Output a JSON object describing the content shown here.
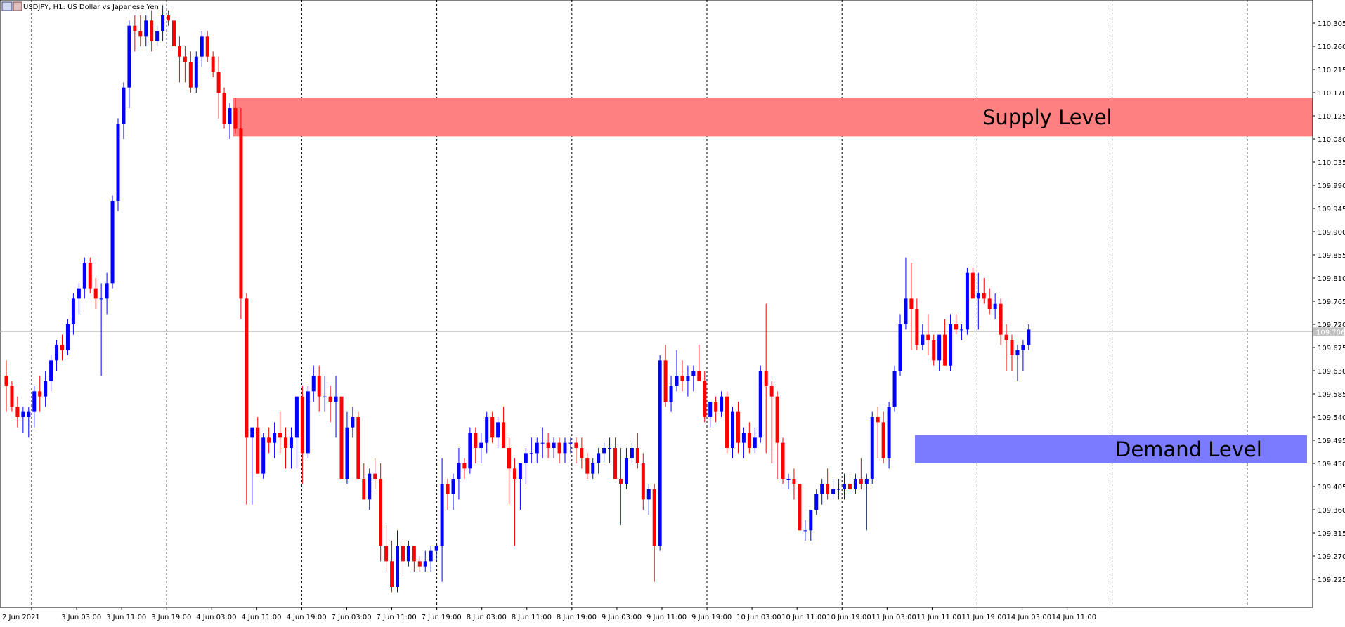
{
  "window": {
    "title": "USDJPY, H1:  US Dollar vs Japanese Yen",
    "icon": "chart-window-icon"
  },
  "colors": {
    "bull": "#0000ff",
    "bear": "#ff0000",
    "supply": "#ff8080",
    "demand": "#7b7bff",
    "grid": "#000000",
    "current_price_line": "#c0c0c0"
  },
  "chart_data": {
    "type": "candlestick",
    "symbol": "USDJPY",
    "timeframe": "H1",
    "y_range": [
      109.18,
      110.35
    ],
    "y_ticks": [
      "110.305",
      "110.260",
      "110.215",
      "110.170",
      "110.125",
      "110.080",
      "110.035",
      "109.990",
      "109.945",
      "109.900",
      "109.855",
      "109.810",
      "109.765",
      "109.720",
      "109.675",
      "109.630",
      "109.585",
      "109.540",
      "109.495",
      "109.450",
      "109.405",
      "109.360",
      "109.315",
      "109.270",
      "109.225"
    ],
    "x_ticks": [
      "2 Jun 2021",
      "3 Jun 03:00",
      "3 Jun 11:00",
      "3 Jun 19:00",
      "4 Jun 03:00",
      "4 Jun 11:00",
      "4 Jun 19:00",
      "7 Jun 03:00",
      "7 Jun 11:00",
      "7 Jun 19:00",
      "8 Jun 03:00",
      "8 Jun 11:00",
      "8 Jun 19:00",
      "9 Jun 03:00",
      "9 Jun 11:00",
      "9 Jun 19:00",
      "10 Jun 03:00",
      "10 Jun 11:00",
      "10 Jun 19:00",
      "11 Jun 03:00",
      "11 Jun 11:00",
      "11 Jun 19:00",
      "14 Jun 03:00",
      "14 Jun 11:00"
    ],
    "current_price": 109.706,
    "current_price_label": "109.706",
    "zones": [
      {
        "name": "Supply Level",
        "low": 110.085,
        "high": 110.16
      },
      {
        "name": "Demand Level",
        "low": 109.45,
        "high": 109.505
      }
    ],
    "ohlc": [
      [
        109.62,
        109.65,
        109.55,
        109.6
      ],
      [
        109.6,
        109.61,
        109.55,
        109.56
      ],
      [
        109.56,
        109.58,
        109.52,
        109.54
      ],
      [
        109.54,
        109.56,
        109.51,
        109.55
      ],
      [
        109.54,
        109.56,
        109.5,
        109.55
      ],
      [
        109.55,
        109.6,
        109.52,
        109.59
      ],
      [
        109.59,
        109.62,
        109.55,
        109.58
      ],
      [
        109.58,
        109.63,
        109.56,
        109.61
      ],
      [
        109.61,
        109.66,
        109.59,
        109.65
      ],
      [
        109.65,
        109.69,
        109.63,
        109.68
      ],
      [
        109.68,
        109.7,
        109.65,
        109.67
      ],
      [
        109.67,
        109.73,
        109.66,
        109.72
      ],
      [
        109.72,
        109.78,
        109.7,
        109.77
      ],
      [
        109.77,
        109.8,
        109.74,
        109.79
      ],
      [
        109.79,
        109.85,
        109.77,
        109.84
      ],
      [
        109.84,
        109.85,
        109.78,
        109.79
      ],
      [
        109.79,
        109.81,
        109.75,
        109.77
      ],
      [
        109.77,
        109.8,
        109.62,
        109.77
      ],
      [
        109.77,
        109.82,
        109.74,
        109.8
      ],
      [
        109.8,
        109.97,
        109.79,
        109.96
      ],
      [
        109.96,
        110.12,
        109.94,
        110.11
      ],
      [
        110.11,
        110.19,
        110.08,
        110.18
      ],
      [
        110.18,
        110.31,
        110.14,
        110.3
      ],
      [
        110.3,
        110.32,
        110.25,
        110.29
      ],
      [
        110.29,
        110.32,
        110.26,
        110.28
      ],
      [
        110.28,
        110.32,
        110.26,
        110.31
      ],
      [
        110.31,
        110.33,
        110.25,
        110.27
      ],
      [
        110.27,
        110.3,
        110.26,
        110.29
      ],
      [
        110.29,
        110.34,
        110.27,
        110.32
      ],
      [
        110.32,
        110.33,
        110.3,
        110.31
      ],
      [
        110.31,
        110.33,
        110.26,
        110.26
      ],
      [
        110.26,
        110.28,
        110.19,
        110.24
      ],
      [
        110.24,
        110.26,
        110.19,
        110.23
      ],
      [
        110.23,
        110.25,
        110.17,
        110.18
      ],
      [
        110.18,
        110.25,
        110.17,
        110.24
      ],
      [
        110.24,
        110.29,
        110.22,
        110.28
      ],
      [
        110.28,
        110.29,
        110.23,
        110.24
      ],
      [
        110.24,
        110.25,
        110.2,
        110.21
      ],
      [
        110.21,
        110.24,
        110.12,
        110.17
      ],
      [
        110.17,
        110.18,
        110.1,
        110.11
      ],
      [
        110.11,
        110.15,
        110.08,
        110.14
      ],
      [
        110.14,
        110.16,
        110.09,
        110.1
      ],
      [
        110.1,
        110.14,
        109.73,
        109.77
      ],
      [
        109.77,
        109.78,
        109.37,
        109.5
      ],
      [
        109.5,
        109.52,
        109.37,
        109.52
      ],
      [
        109.52,
        109.54,
        109.43,
        109.43
      ],
      [
        109.43,
        109.51,
        109.42,
        109.5
      ],
      [
        109.5,
        109.52,
        109.47,
        109.49
      ],
      [
        109.49,
        109.53,
        109.46,
        109.51
      ],
      [
        109.51,
        109.55,
        109.47,
        109.5
      ],
      [
        109.5,
        109.52,
        109.44,
        109.48
      ],
      [
        109.48,
        109.52,
        109.44,
        109.5
      ],
      [
        109.5,
        109.58,
        109.44,
        109.58
      ],
      [
        109.58,
        109.6,
        109.41,
        109.47
      ],
      [
        109.47,
        109.6,
        109.46,
        109.59
      ],
      [
        109.59,
        109.64,
        109.57,
        109.62
      ],
      [
        109.62,
        109.64,
        109.55,
        109.58
      ],
      [
        109.58,
        109.62,
        109.55,
        109.58
      ],
      [
        109.58,
        109.6,
        109.53,
        109.57
      ],
      [
        109.57,
        109.62,
        109.5,
        109.58
      ],
      [
        109.58,
        109.58,
        109.42,
        109.42
      ],
      [
        109.42,
        109.55,
        109.41,
        109.52
      ],
      [
        109.52,
        109.56,
        109.5,
        109.54
      ],
      [
        109.54,
        109.55,
        109.42,
        109.42
      ],
      [
        109.42,
        109.45,
        109.38,
        109.38
      ],
      [
        109.38,
        109.44,
        109.36,
        109.43
      ],
      [
        109.43,
        109.46,
        109.4,
        109.42
      ],
      [
        109.42,
        109.45,
        109.26,
        109.29
      ],
      [
        109.29,
        109.33,
        109.24,
        109.26
      ],
      [
        109.26,
        109.3,
        109.2,
        109.21
      ],
      [
        109.21,
        109.32,
        109.2,
        109.29
      ],
      [
        109.29,
        109.3,
        109.23,
        109.26
      ],
      [
        109.26,
        109.3,
        109.25,
        109.29
      ],
      [
        109.29,
        109.29,
        109.24,
        109.26
      ],
      [
        109.26,
        109.27,
        109.24,
        109.25
      ],
      [
        109.25,
        109.28,
        109.24,
        109.26
      ],
      [
        109.26,
        109.29,
        109.24,
        109.28
      ],
      [
        109.28,
        109.29,
        109.26,
        109.29
      ],
      [
        109.29,
        109.46,
        109.22,
        109.41
      ],
      [
        109.41,
        109.42,
        109.36,
        109.39
      ],
      [
        109.39,
        109.43,
        109.36,
        109.42
      ],
      [
        109.42,
        109.48,
        109.38,
        109.45
      ],
      [
        109.45,
        109.46,
        109.42,
        109.44
      ],
      [
        109.44,
        109.52,
        109.43,
        109.51
      ],
      [
        109.51,
        109.52,
        109.45,
        109.48
      ],
      [
        109.48,
        109.51,
        109.45,
        109.49
      ],
      [
        109.49,
        109.55,
        109.47,
        109.54
      ],
      [
        109.54,
        109.55,
        109.49,
        109.5
      ],
      [
        109.5,
        109.54,
        109.48,
        109.53
      ],
      [
        109.53,
        109.56,
        109.48,
        109.48
      ],
      [
        109.48,
        109.5,
        109.37,
        109.44
      ],
      [
        109.44,
        109.46,
        109.29,
        109.42
      ],
      [
        109.42,
        109.44,
        109.36,
        109.45
      ],
      [
        109.45,
        109.48,
        109.41,
        109.47
      ],
      [
        109.47,
        109.5,
        109.45,
        109.47
      ],
      [
        109.47,
        109.5,
        109.45,
        109.49
      ],
      [
        109.49,
        109.52,
        109.46,
        109.49
      ],
      [
        109.49,
        109.51,
        109.46,
        109.48
      ],
      [
        109.48,
        109.5,
        109.46,
        109.49
      ],
      [
        109.49,
        109.5,
        109.45,
        109.47
      ],
      [
        109.47,
        109.5,
        109.45,
        109.49
      ],
      [
        109.49,
        109.5,
        109.47,
        109.49
      ],
      [
        109.49,
        109.5,
        109.45,
        109.48
      ],
      [
        109.48,
        109.5,
        109.44,
        109.46
      ],
      [
        109.46,
        109.47,
        109.42,
        109.43
      ],
      [
        109.43,
        109.46,
        109.42,
        109.45
      ],
      [
        109.45,
        109.48,
        109.43,
        109.47
      ],
      [
        109.47,
        109.49,
        109.45,
        109.48
      ],
      [
        109.48,
        109.5,
        109.45,
        109.48
      ],
      [
        109.48,
        109.5,
        109.42,
        109.42
      ],
      [
        109.42,
        109.48,
        109.33,
        109.41
      ],
      [
        109.41,
        109.48,
        109.4,
        109.46
      ],
      [
        109.46,
        109.49,
        109.45,
        109.48
      ],
      [
        109.48,
        109.51,
        109.44,
        109.45
      ],
      [
        109.45,
        109.47,
        109.36,
        109.38
      ],
      [
        109.38,
        109.41,
        109.35,
        109.4
      ],
      [
        109.4,
        109.41,
        109.22,
        109.29
      ],
      [
        109.29,
        109.66,
        109.28,
        109.65
      ],
      [
        109.65,
        109.68,
        109.56,
        109.57
      ],
      [
        109.57,
        109.62,
        109.55,
        109.6
      ],
      [
        109.6,
        109.67,
        109.59,
        109.62
      ],
      [
        109.62,
        109.65,
        109.59,
        109.61
      ],
      [
        109.61,
        109.64,
        109.58,
        109.62
      ],
      [
        109.62,
        109.64,
        109.59,
        109.63
      ],
      [
        109.63,
        109.68,
        109.61,
        109.61
      ],
      [
        109.61,
        109.63,
        109.53,
        109.54
      ],
      [
        109.54,
        109.57,
        109.52,
        109.57
      ],
      [
        109.57,
        109.58,
        109.53,
        109.55
      ],
      [
        109.55,
        109.59,
        109.54,
        109.58
      ],
      [
        109.58,
        109.59,
        109.47,
        109.48
      ],
      [
        109.48,
        109.56,
        109.46,
        109.55
      ],
      [
        109.55,
        109.57,
        109.47,
        109.49
      ],
      [
        109.49,
        109.52,
        109.46,
        109.51
      ],
      [
        109.51,
        109.53,
        109.47,
        109.48
      ],
      [
        109.48,
        109.52,
        109.47,
        109.5
      ],
      [
        109.5,
        109.64,
        109.49,
        109.63
      ],
      [
        109.63,
        109.76,
        109.47,
        109.6
      ],
      [
        109.6,
        109.61,
        109.45,
        109.58
      ],
      [
        109.58,
        109.59,
        109.42,
        109.49
      ],
      [
        109.49,
        109.5,
        109.41,
        109.42
      ],
      [
        109.42,
        109.43,
        109.4,
        109.42
      ],
      [
        109.42,
        109.44,
        109.38,
        109.41
      ],
      [
        109.41,
        109.41,
        109.32,
        109.32
      ],
      [
        109.32,
        109.34,
        109.3,
        109.32
      ],
      [
        109.32,
        109.36,
        109.3,
        109.36
      ],
      [
        109.36,
        109.4,
        109.35,
        109.39
      ],
      [
        109.39,
        109.42,
        109.37,
        109.41
      ],
      [
        109.41,
        109.44,
        109.38,
        109.39
      ],
      [
        109.39,
        109.42,
        109.38,
        109.4
      ],
      [
        109.4,
        109.42,
        109.38,
        109.4
      ],
      [
        109.4,
        109.43,
        109.38,
        109.41
      ],
      [
        109.41,
        109.43,
        109.39,
        109.4
      ],
      [
        109.4,
        109.43,
        109.39,
        109.42
      ],
      [
        109.42,
        109.46,
        109.4,
        109.41
      ],
      [
        109.41,
        109.43,
        109.32,
        109.42
      ],
      [
        109.42,
        109.55,
        109.41,
        109.54
      ],
      [
        109.54,
        109.56,
        109.46,
        109.53
      ],
      [
        109.53,
        109.55,
        109.45,
        109.46
      ],
      [
        109.46,
        109.57,
        109.44,
        109.56
      ],
      [
        109.56,
        109.64,
        109.55,
        109.63
      ],
      [
        109.63,
        109.74,
        109.62,
        109.72
      ],
      [
        109.72,
        109.85,
        109.71,
        109.77
      ],
      [
        109.77,
        109.84,
        109.67,
        109.75
      ],
      [
        109.75,
        109.77,
        109.67,
        109.68
      ],
      [
        109.68,
        109.72,
        109.67,
        109.7
      ],
      [
        109.7,
        109.74,
        109.66,
        109.69
      ],
      [
        109.69,
        109.7,
        109.64,
        109.65
      ],
      [
        109.65,
        109.7,
        109.63,
        109.7
      ],
      [
        109.7,
        109.73,
        109.64,
        109.64
      ],
      [
        109.64,
        109.74,
        109.63,
        109.72
      ],
      [
        109.72,
        109.74,
        109.7,
        109.71
      ],
      [
        109.71,
        109.72,
        109.69,
        109.71
      ],
      [
        109.71,
        109.83,
        109.7,
        109.82
      ],
      [
        109.82,
        109.83,
        109.77,
        109.77
      ],
      [
        109.77,
        109.82,
        109.71,
        109.78
      ],
      [
        109.78,
        109.81,
        109.76,
        109.77
      ],
      [
        109.77,
        109.79,
        109.74,
        109.75
      ],
      [
        109.75,
        109.78,
        109.73,
        109.76
      ],
      [
        109.76,
        109.77,
        109.68,
        109.7
      ],
      [
        109.7,
        109.72,
        109.63,
        109.69
      ],
      [
        109.69,
        109.7,
        109.63,
        109.66
      ],
      [
        109.66,
        109.68,
        109.61,
        109.67
      ],
      [
        109.67,
        109.69,
        109.63,
        109.68
      ],
      [
        109.68,
        109.72,
        109.67,
        109.71
      ]
    ]
  }
}
